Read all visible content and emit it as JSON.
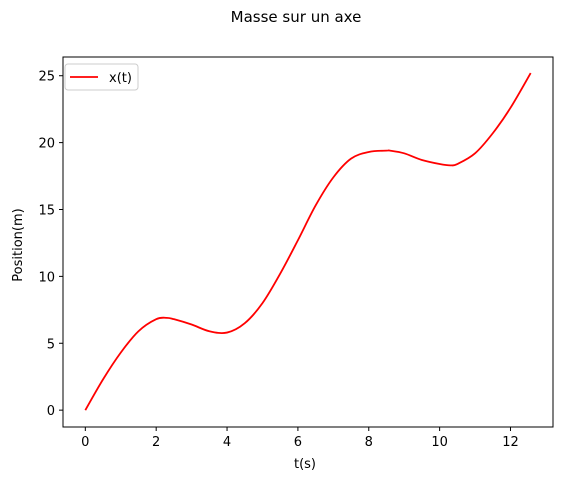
{
  "chart_data": {
    "type": "line",
    "title": "Masse sur un axe",
    "xlabel": "t(s)",
    "ylabel": "Position(m)",
    "xlim": [
      -0.63,
      13.2
    ],
    "ylim": [
      -1.26,
      26.4
    ],
    "xticks": [
      0,
      2,
      4,
      6,
      8,
      10,
      12
    ],
    "yticks": [
      0,
      5,
      10,
      15,
      20,
      25
    ],
    "legend": {
      "position": "top-left",
      "entries": [
        "x(t)"
      ]
    },
    "grid": false,
    "series": [
      {
        "name": "x(t)",
        "color": "#ff0000",
        "x": [
          0,
          0.5,
          1,
          1.5,
          2,
          2.3,
          2.5,
          3,
          3.5,
          4,
          4.5,
          5,
          5.5,
          6,
          6.5,
          7,
          7.5,
          8,
          8.5,
          8.6,
          9,
          9.5,
          10,
          10.3,
          10.5,
          11,
          11.5,
          12,
          12.57
        ],
        "y": [
          0,
          2.3,
          4.3,
          5.9,
          6.8,
          6.9,
          6.8,
          6.4,
          5.9,
          5.8,
          6.5,
          8.0,
          10.2,
          12.7,
          15.3,
          17.4,
          18.8,
          19.3,
          19.4,
          19.4,
          19.2,
          18.7,
          18.4,
          18.3,
          18.4,
          19.2,
          20.7,
          22.6,
          25.2
        ]
      }
    ]
  }
}
